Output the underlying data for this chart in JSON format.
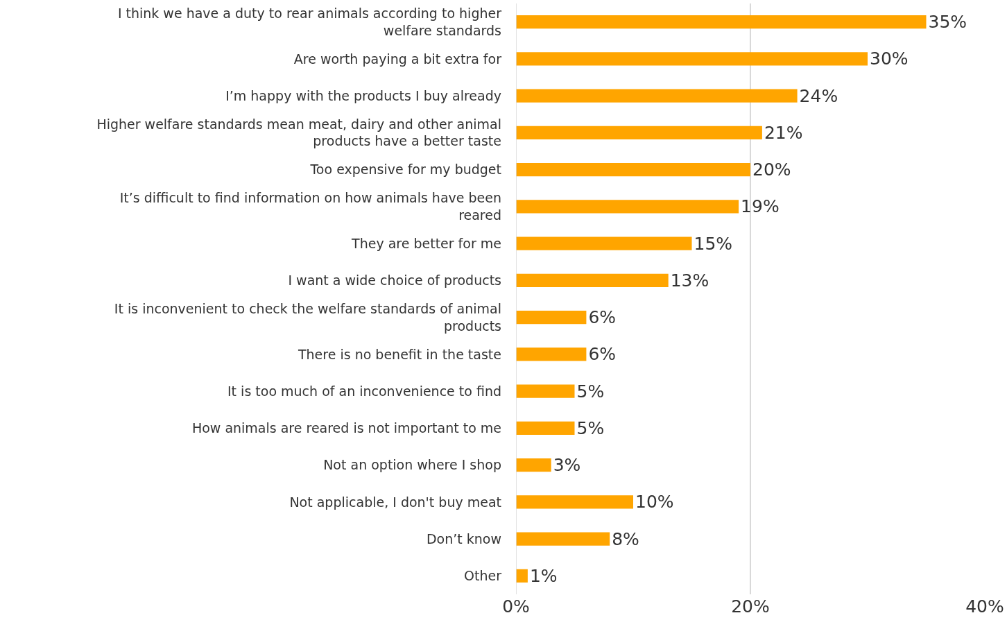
{
  "chart_data": {
    "type": "bar",
    "orientation": "horizontal",
    "categories": [
      "I think we have a duty to rear animals according to higher welfare standards",
      "Are worth paying a bit extra for",
      "I’m happy with the products I buy already",
      "Higher welfare standards mean meat, dairy and other animal products have a better taste",
      "Too expensive for my budget",
      "It’s difficult to find information on how animals have been reared",
      "They are better for me",
      "I want a wide choice of products",
      "It is inconvenient to check the welfare standards of animal products",
      "There is no benefit in the taste",
      "It is too much of an inconvenience to find",
      "How animals are reared is not important to me",
      "Not an option where I shop",
      "Not applicable, I don't buy meat",
      "Don’t know",
      "Other"
    ],
    "values": [
      35,
      30,
      24,
      21,
      20,
      19,
      15,
      13,
      6,
      6,
      5,
      5,
      3,
      10,
      8,
      1
    ],
    "value_labels": [
      "35%",
      "30%",
      "24%",
      "21%",
      "20%",
      "19%",
      "15%",
      "13%",
      "6%",
      "6%",
      "5%",
      "5%",
      "3%",
      "10%",
      "8%",
      "1%"
    ],
    "color": "#ffa500",
    "xlim": [
      0,
      40
    ],
    "xticks": [
      {
        "value": 0,
        "label": "0%"
      },
      {
        "value": 20,
        "label": "20%"
      },
      {
        "value": 40,
        "label": "40%"
      }
    ],
    "grid": "x"
  }
}
